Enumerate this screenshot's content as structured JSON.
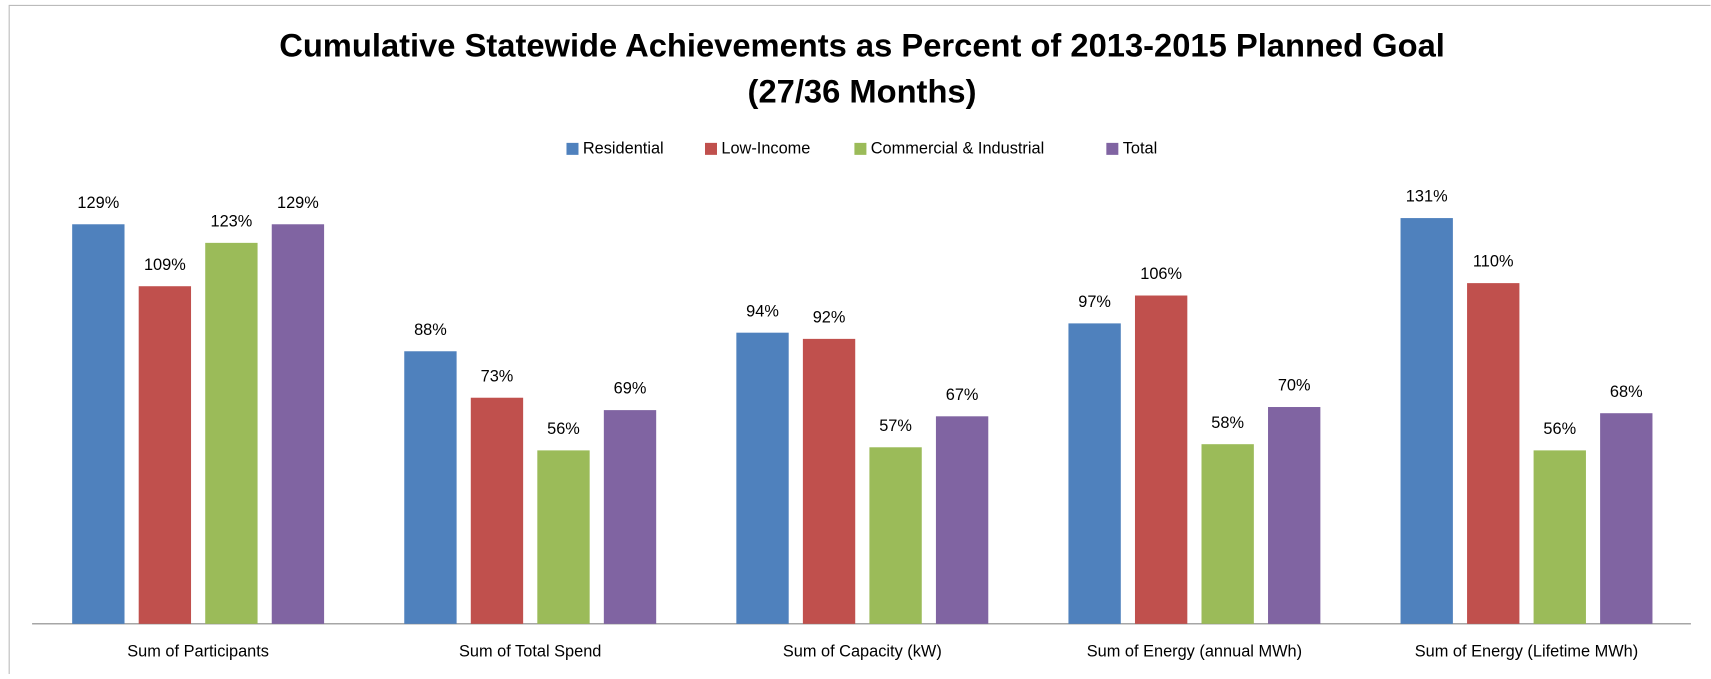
{
  "chart_data": {
    "type": "bar",
    "title": [
      "Cumulative Statewide Achievements as Percent of 2013-2015 Planned Goal",
      "(27/36 Months)"
    ],
    "categories": [
      "Sum of Participants",
      "Sum of Total Spend",
      "Sum of Capacity (kW)",
      "Sum of Energy (annual MWh)",
      "Sum of Energy (Lifetime MWh)"
    ],
    "series": [
      {
        "name": "Residential",
        "color": "#4f81bd",
        "values": [
          129,
          88,
          94,
          97,
          131
        ],
        "value_labels": [
          "129%",
          "88%",
          "94%",
          "97%",
          "131%"
        ]
      },
      {
        "name": "Low-Income",
        "color": "#c0504d",
        "values": [
          109,
          73,
          92,
          106,
          110
        ],
        "value_labels": [
          "109%",
          "73%",
          "92%",
          "106%",
          "110%"
        ]
      },
      {
        "name": "Commercial & Industrial",
        "color": "#9bbb59",
        "values": [
          123,
          56,
          57,
          58,
          56
        ],
        "value_labels": [
          "123%",
          "56%",
          "57%",
          "58%",
          "56%"
        ]
      },
      {
        "name": "Total",
        "color": "#8064a2",
        "values": [
          129,
          69,
          67,
          70,
          68
        ],
        "value_labels": [
          "129%",
          "69%",
          "67%",
          "70%",
          "68%"
        ]
      }
    ],
    "legend": "top"
  }
}
